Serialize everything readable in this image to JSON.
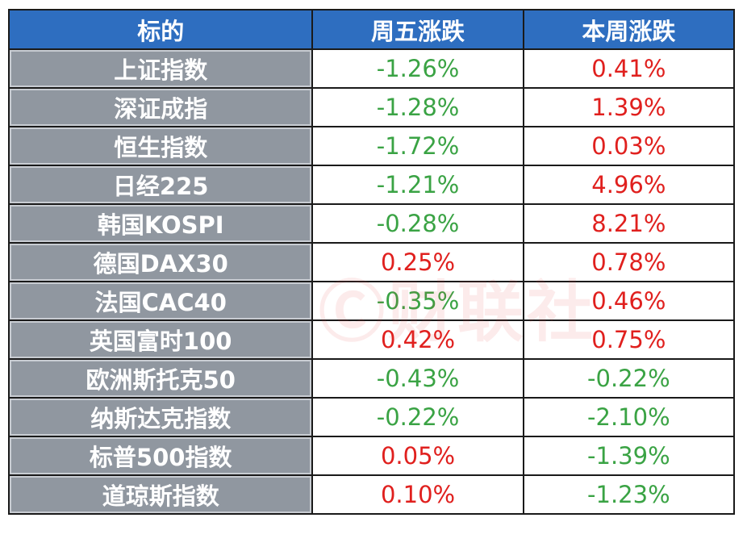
{
  "headers": [
    "标的",
    "周五涨跌",
    "本周涨跌"
  ],
  "rows": [
    {
      "name": "上证指数",
      "friday": "-1.26%",
      "week": "0.41%"
    },
    {
      "name": "深证成指",
      "friday": "-1.28%",
      "week": "1.39%"
    },
    {
      "name": "恒生指数",
      "friday": "-1.72%",
      "week": "0.03%"
    },
    {
      "name": "日经225",
      "friday": "-1.21%",
      "week": "4.96%"
    },
    {
      "name": "韩国KOSPI",
      "friday": "-0.28%",
      "week": "8.21%"
    },
    {
      "name": "德国DAX30",
      "friday": "0.25%",
      "week": "0.78%"
    },
    {
      "name": "法国CAC40",
      "friday": "-0.35%",
      "week": "0.46%"
    },
    {
      "name": "英国富时100",
      "friday": "0.42%",
      "week": "0.75%"
    },
    {
      "name": "欧洲斯托克50",
      "friday": "-0.43%",
      "week": "-0.22%"
    },
    {
      "name": "纳斯达克指数",
      "friday": "-0.22%",
      "week": "-2.10%"
    },
    {
      "name": "标普500指数",
      "friday": "0.05%",
      "week": "-1.39%"
    },
    {
      "name": "道琼斯指数",
      "friday": "0.10%",
      "week": "-1.23%"
    }
  ],
  "colors": {
    "header": "#2e6ec0",
    "name_cell": "#9097a0",
    "up": "#e0201e",
    "down": "#3aa344"
  },
  "watermark": "财联社"
}
